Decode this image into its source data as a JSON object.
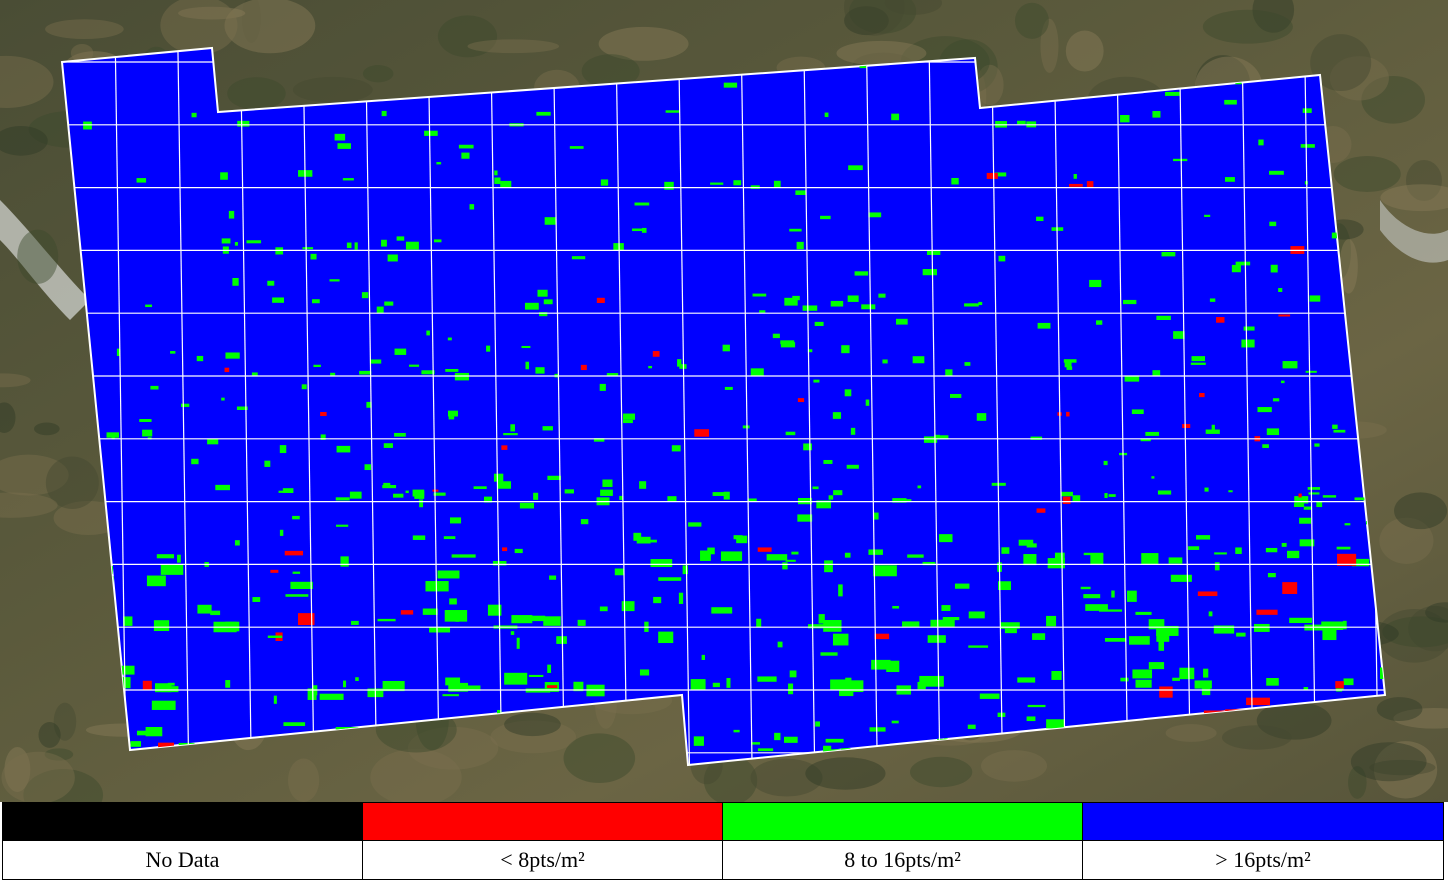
{
  "legend": {
    "items": [
      {
        "label": "No Data",
        "color": "#000000"
      },
      {
        "label": "< 8pts/m²",
        "color": "#ff0000"
      },
      {
        "label": "8 to 16pts/m²",
        "color": "#00ff00"
      },
      {
        "label": "> 16pts/m²",
        "color": "#0000ff"
      }
    ]
  }
}
